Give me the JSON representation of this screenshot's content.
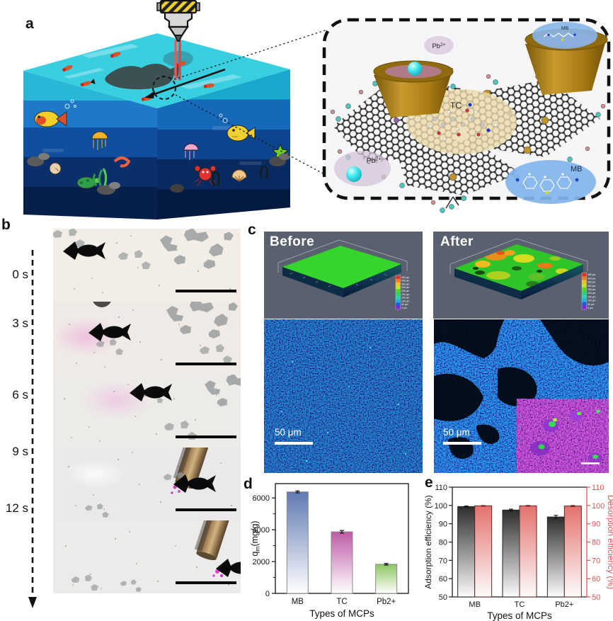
{
  "figure_labels": {
    "a": "a",
    "b": "b",
    "c": "c",
    "d": "d",
    "e": "e"
  },
  "panel_a": {
    "labels": {
      "pb_top_base": "Pb",
      "pb_top_sup": "2+",
      "pb_bottom_base": "Pb",
      "pb_bottom_sup": "2+",
      "tc": "TC",
      "mb_top": "MB",
      "mb_bottom": "MB"
    }
  },
  "panel_b": {
    "timestamps": [
      "0 s",
      "3 s",
      "6 s",
      "9 s",
      "12 s"
    ]
  },
  "panel_c": {
    "before_label": "Before",
    "after_label": "After",
    "scalebar_label": "50 μm",
    "colorbar_ticks": [
      "450 μm",
      "400 μm",
      "350 μm",
      "300 μm",
      "250 μm",
      "200 μm",
      "150 μm",
      "100 μm",
      "50 μm",
      "0 μm"
    ],
    "colorbar_colors": [
      "#e03020",
      "#f07820",
      "#f0c020",
      "#c8e020",
      "#50d828",
      "#20d868",
      "#20d8b0",
      "#20b0e0",
      "#2058e0",
      "#8028d8"
    ]
  },
  "chart_data": [
    {
      "panel": "d",
      "type": "bar",
      "categories": [
        "MB",
        "TC",
        "Pb2+"
      ],
      "values": [
        6380,
        3870,
        1830
      ],
      "errors": [
        60,
        80,
        50
      ],
      "bar_colors": [
        "#6079b2",
        "#bd5ba6",
        "#8dc55f"
      ],
      "xlabel": "Types of MCPs",
      "ylabel": {
        "base": "q",
        "sub": "m",
        "rest": "(mg/g)"
      },
      "ylim": [
        0,
        6900
      ],
      "yticks": [
        0,
        2000,
        4000,
        6000
      ],
      "grid": false
    },
    {
      "panel": "e",
      "type": "bar",
      "categories": [
        "MB",
        "TC",
        "Pb2+"
      ],
      "series": [
        {
          "name": "Adsorption efficiency (%)",
          "axis": "left",
          "color_top": "#2d2d2d",
          "values": [
            99.4,
            97.5,
            93.7
          ],
          "errors": [
            0.3,
            0.5,
            0.9
          ]
        },
        {
          "name": "Desorption efficiency (%)",
          "axis": "right",
          "color_top": "#e4716d",
          "values": [
            99.8,
            99.8,
            99.7
          ],
          "errors": [
            0.2,
            0.2,
            0.3
          ]
        }
      ],
      "xlabel": "Types of MCPs",
      "ylabel_left": "Adsorption efficiency (%)",
      "ylabel_right": "Desorption efficiency (%)",
      "ylim": [
        50,
        110
      ],
      "yticks": [
        50,
        60,
        70,
        80,
        90,
        100,
        110
      ],
      "left_axis_color": "#1a1a1a",
      "right_axis_color": "#e25352",
      "grid": false
    }
  ]
}
